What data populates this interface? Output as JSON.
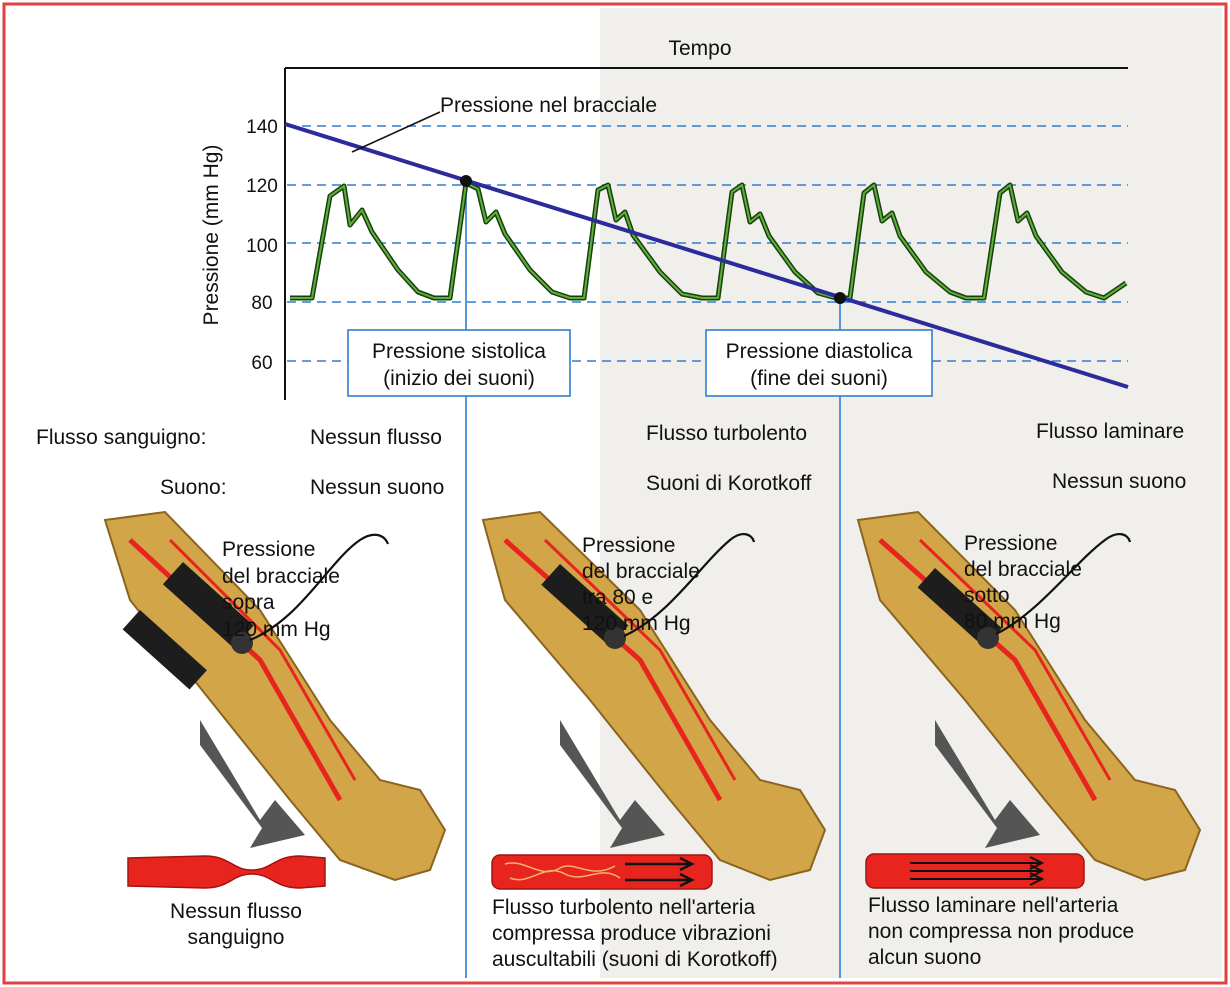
{
  "chart": {
    "title": "Tempo",
    "ylabel": "Pressione (mm Hg)",
    "y_ticks": [
      "140",
      "120",
      "100",
      "80",
      "60"
    ],
    "cuff_line_label": "Pressione nel bracciale",
    "systolic_box": {
      "line1": "Pressione sistolica",
      "line2": "(inizio dei suoni)"
    },
    "diastolic_box": {
      "line1": "Pressione diastolica",
      "line2": "(fine dei suoni)"
    }
  },
  "chart_data": {
    "type": "line",
    "title": "Tempo",
    "ylabel": "Pressione (mm Hg)",
    "ylim": [
      50,
      145
    ],
    "y_ticks": [
      140,
      120,
      100,
      80,
      60
    ],
    "series": [
      {
        "name": "Pressione nel bracciale",
        "start": 140,
        "end": 56
      },
      {
        "values_min": 81,
        "values_max": 120,
        "cycles": 6
      }
    ],
    "annotations": [
      {
        "label": "Pressione sistolica (inizio dei suoni)",
        "value": 120
      },
      {
        "label": "Pressione diastolica (fine dei suoni)",
        "value": 80
      }
    ]
  },
  "rows": {
    "flow_label": "Flusso sanguigno:",
    "sound_label": "Suono:"
  },
  "columns": [
    {
      "flow": "Nessun flusso",
      "sound": "Nessun suono",
      "cuff_line1": "Pressione",
      "cuff_line2": "del bracciale",
      "cuff_line3": "sopra",
      "cuff_line4": "120 mm Hg",
      "artery_caption_line1": "Nessun flusso",
      "artery_caption_line2": "sanguigno"
    },
    {
      "flow": "Flusso turbolento",
      "sound": "Suoni di Korotkoff",
      "cuff_line1": "Pressione",
      "cuff_line2": "del bracciale",
      "cuff_line3": "tra 80 e",
      "cuff_line4": "120 mm Hg",
      "artery_caption_line1": "Flusso turbolento nell'arteria",
      "artery_caption_line2": "compressa produce vibrazioni",
      "artery_caption_line3": "auscultabili (suoni di Korotkoff)"
    },
    {
      "flow": "Flusso laminare",
      "sound": "Nessun suono",
      "cuff_line1": "Pressione",
      "cuff_line2": "del bracciale",
      "cuff_line3": "sotto",
      "cuff_line4": "80 mm Hg",
      "artery_caption_line1": "Flusso laminare nell'arteria",
      "artery_caption_line2": "non compressa non produce",
      "artery_caption_line3": "alcun suono"
    }
  ],
  "colors": {
    "cuff_line": "#2b2b9c",
    "pulse": "#2e6b1f",
    "guide": "#2f7fd0",
    "artery": "#e8241f",
    "arm": "#d2a648",
    "frame": "#e34040"
  }
}
